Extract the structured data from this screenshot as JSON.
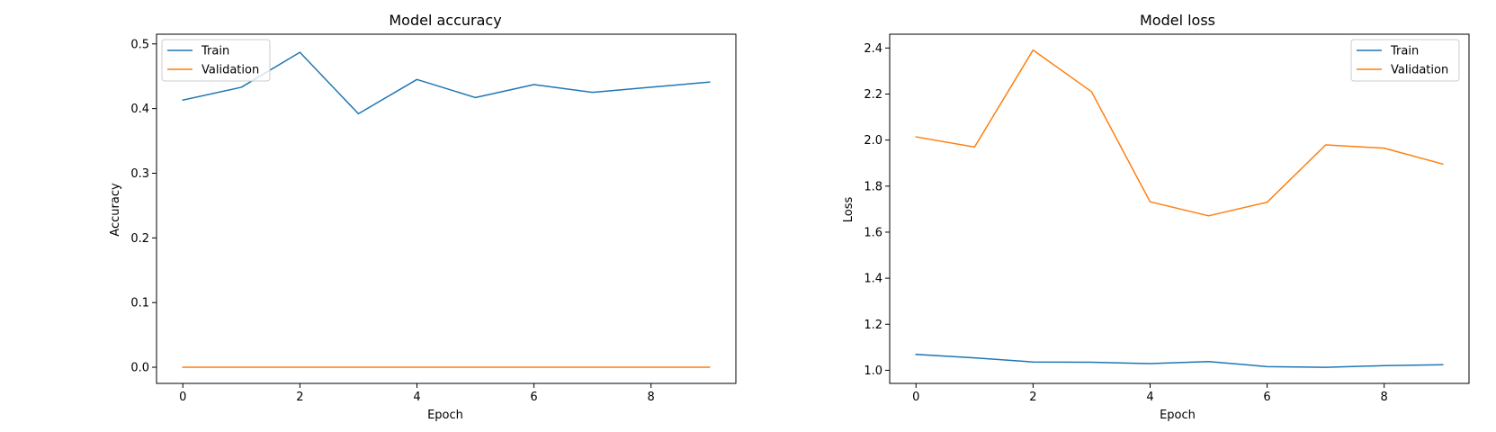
{
  "chart_data": [
    {
      "type": "line",
      "title": "Model accuracy",
      "xlabel": "Epoch",
      "ylabel": "Accuracy",
      "x": [
        0,
        1,
        2,
        3,
        4,
        5,
        6,
        7,
        8,
        9
      ],
      "xlim": [
        -0.45,
        9.45
      ],
      "ylim": [
        -0.025,
        0.515
      ],
      "xticks": [
        0,
        2,
        4,
        6,
        8
      ],
      "xtick_labels": [
        "0",
        "2",
        "4",
        "6",
        "8"
      ],
      "yticks": [
        0.0,
        0.1,
        0.2,
        0.3,
        0.4,
        0.5
      ],
      "ytick_labels": [
        "0.0",
        "0.1",
        "0.2",
        "0.3",
        "0.4",
        "0.5"
      ],
      "grid": false,
      "legend": "upper left",
      "series": [
        {
          "name": "Train",
          "color": "#1f77b4",
          "values": [
            0.413,
            0.433,
            0.487,
            0.392,
            0.445,
            0.417,
            0.437,
            0.425,
            0.433,
            0.441
          ]
        },
        {
          "name": "Validation",
          "color": "#ff7f0e",
          "values": [
            0.0,
            0.0,
            0.0,
            0.0,
            0.0,
            0.0,
            0.0,
            0.0,
            0.0,
            0.0
          ]
        }
      ]
    },
    {
      "type": "line",
      "title": "Model loss",
      "xlabel": "Epoch",
      "ylabel": "Loss",
      "x": [
        0,
        1,
        2,
        3,
        4,
        5,
        6,
        7,
        8,
        9
      ],
      "xlim": [
        -0.45,
        9.45
      ],
      "ylim": [
        0.943,
        2.46
      ],
      "xticks": [
        0,
        2,
        4,
        6,
        8
      ],
      "xtick_labels": [
        "0",
        "2",
        "4",
        "6",
        "8"
      ],
      "yticks": [
        1.0,
        1.2,
        1.4,
        1.6,
        1.8,
        2.0,
        2.2,
        2.4
      ],
      "ytick_labels": [
        "1.0",
        "1.2",
        "1.4",
        "1.6",
        "1.8",
        "2.0",
        "2.2",
        "2.4"
      ],
      "grid": false,
      "legend": "upper right",
      "series": [
        {
          "name": "Train",
          "color": "#1f77b4",
          "values": [
            1.069,
            1.054,
            1.036,
            1.035,
            1.029,
            1.038,
            1.016,
            1.013,
            1.02,
            1.024
          ]
        },
        {
          "name": "Validation",
          "color": "#ff7f0e",
          "values": [
            2.014,
            1.97,
            2.391,
            2.21,
            1.732,
            1.671,
            1.73,
            1.979,
            1.965,
            1.896
          ]
        }
      ]
    }
  ]
}
